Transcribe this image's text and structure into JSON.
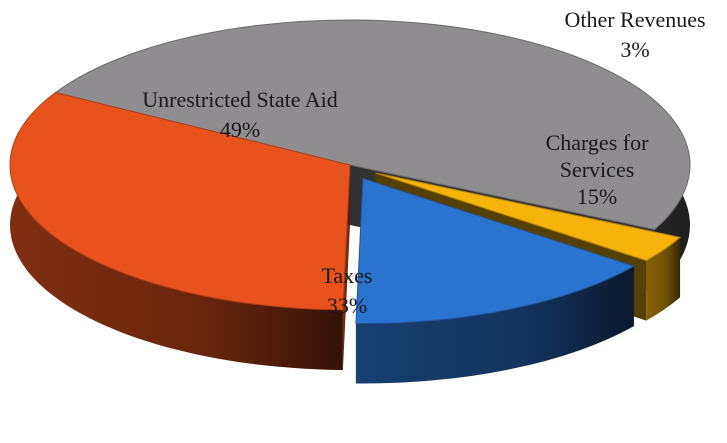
{
  "chart_data": {
    "type": "pie",
    "title": "",
    "slices": [
      {
        "name": "Unrestricted State Aid",
        "value": 49,
        "label": "49%",
        "color": "#8f8d90",
        "exploded": false
      },
      {
        "name": "Other Revenues",
        "value": 3,
        "label": "3%",
        "color": "#f5b30c",
        "exploded": true
      },
      {
        "name": "Charges for Services",
        "value": 15,
        "label": "15%",
        "color": "#2a73cf",
        "exploded": true
      },
      {
        "name": "Taxes",
        "value": 33,
        "label": "33%",
        "color": "#e8531d",
        "exploded": false
      }
    ],
    "style": "3d-exploded",
    "legend": "none"
  }
}
